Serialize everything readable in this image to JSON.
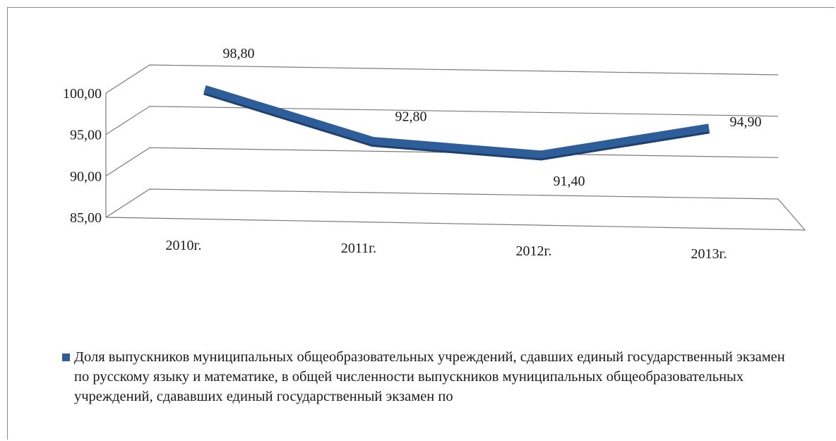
{
  "chart_data": {
    "type": "line",
    "title": "",
    "xlabel": "",
    "ylabel": "",
    "categories": [
      "2010г.",
      "2011г.",
      "2012г.",
      "2013г."
    ],
    "series": [
      {
        "name": "Доля выпускников муниципальных  общеобразовательных учреждений, сдавших единый государственный экзамен по русскому  языку и математике, в общей численности выпускников муниципальных  общеобразовательных учреждений, сдававших единый государственный экзамен по",
        "values": [
          98.8,
          92.8,
          91.4,
          94.9
        ],
        "labels": [
          "98,80",
          "92,80",
          "91,40",
          "94,90"
        ]
      }
    ],
    "yticks": [
      "85,00",
      "90,00",
      "95,00",
      "100,00"
    ],
    "ytick_values": [
      85,
      90,
      95,
      100
    ],
    "ylim": [
      85,
      100
    ],
    "grid": true,
    "legend_position": "bottom",
    "style": "3d-line",
    "colors": {
      "series": "#2e5e99",
      "grid": "#7a7a7a",
      "text": "#1a1a1a"
    }
  }
}
